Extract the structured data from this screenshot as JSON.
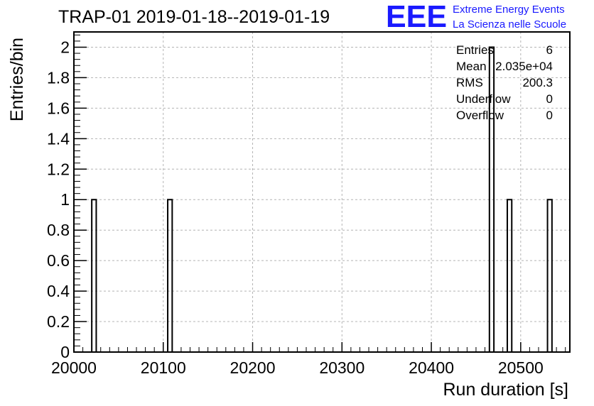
{
  "header": {
    "title": "TRAP-01 2019-01-18--2019-01-19",
    "logo_mark": "EEE",
    "logo_line1": "Extreme Energy Events",
    "logo_line2": "La Scienza nelle Scuole",
    "logo_color": "#1a1aff"
  },
  "stats": {
    "rows": [
      {
        "label": "Entries",
        "value": "6"
      },
      {
        "label": "Mean",
        "value": "2.035e+04"
      },
      {
        "label": "RMS",
        "value": "200.3"
      },
      {
        "label": "Underflow",
        "value": "0"
      },
      {
        "label": "Overflow",
        "value": "0"
      }
    ]
  },
  "chart_data": {
    "type": "bar",
    "title": "TRAP-01 2019-01-18--2019-01-19",
    "xlabel": "Run duration [s]",
    "ylabel": "Entries/bin",
    "xlim": [
      20000,
      20555
    ],
    "ylim": [
      0,
      2.1
    ],
    "grid": true,
    "bin_width": 5,
    "x_ticks": [
      20000,
      20100,
      20200,
      20300,
      20400,
      20500
    ],
    "x_tick_labels": [
      "20000",
      "20100",
      "20200",
      "20300",
      "20400",
      "20500"
    ],
    "y_ticks": [
      0,
      0.2,
      0.4,
      0.6,
      0.8,
      1,
      1.2,
      1.4,
      1.6,
      1.8,
      2
    ],
    "y_tick_labels": [
      "0",
      "0.2",
      "0.4",
      "0.6",
      "0.8",
      "1",
      "1.2",
      "1.4",
      "1.6",
      "1.8",
      "2"
    ],
    "bins": [
      {
        "x": 20022.5,
        "value": 1
      },
      {
        "x": 20107.5,
        "value": 1
      },
      {
        "x": 20467.5,
        "value": 2
      },
      {
        "x": 20487.5,
        "value": 1
      },
      {
        "x": 20532.5,
        "value": 1
      }
    ],
    "line_color": "#000000"
  }
}
